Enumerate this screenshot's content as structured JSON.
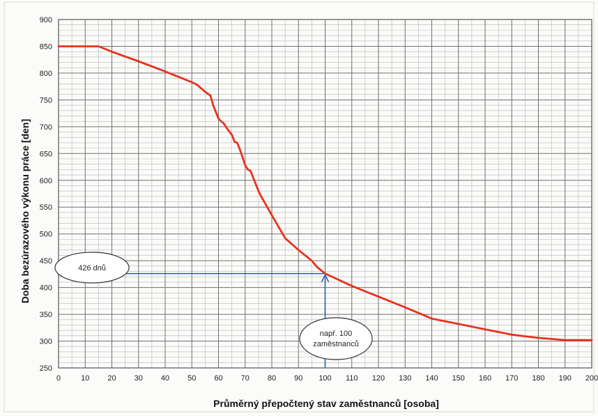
{
  "chart_data": {
    "type": "line",
    "title": "",
    "xlabel": "Průměrný přepočtený stav zaměstnanců [osoba]",
    "ylabel": "Doba bezúrazového výkonu práce [den]",
    "xlim": [
      0,
      200
    ],
    "ylim": [
      250,
      900
    ],
    "x_ticks": [
      0,
      10,
      20,
      30,
      40,
      50,
      60,
      70,
      80,
      90,
      100,
      110,
      120,
      130,
      140,
      150,
      160,
      170,
      180,
      190,
      200
    ],
    "y_ticks": [
      250,
      300,
      350,
      400,
      450,
      500,
      550,
      600,
      650,
      700,
      750,
      800,
      850,
      900
    ],
    "grid": true,
    "line_color": "#e8321e",
    "annotation_color": "#1f5fb4",
    "series": [
      {
        "name": "",
        "points": [
          [
            0,
            850
          ],
          [
            15,
            850
          ],
          [
            20,
            840
          ],
          [
            30,
            822
          ],
          [
            40,
            803
          ],
          [
            50,
            783
          ],
          [
            52,
            778
          ],
          [
            55,
            765
          ],
          [
            57,
            758
          ],
          [
            58,
            740
          ],
          [
            60,
            715
          ],
          [
            61,
            710
          ],
          [
            62,
            706
          ],
          [
            63,
            698
          ],
          [
            65,
            685
          ],
          [
            66,
            672
          ],
          [
            67,
            670
          ],
          [
            68,
            658
          ],
          [
            70,
            628
          ],
          [
            71,
            620
          ],
          [
            72,
            618
          ],
          [
            73,
            605
          ],
          [
            75,
            580
          ],
          [
            76,
            570
          ],
          [
            80,
            535
          ],
          [
            85,
            492
          ],
          [
            90,
            470
          ],
          [
            95,
            450
          ],
          [
            97,
            438
          ],
          [
            100,
            426
          ],
          [
            110,
            403
          ],
          [
            120,
            383
          ],
          [
            130,
            363
          ],
          [
            140,
            342
          ],
          [
            150,
            332
          ],
          [
            160,
            322
          ],
          [
            170,
            312
          ],
          [
            180,
            306
          ],
          [
            190,
            302
          ],
          [
            200,
            302
          ]
        ]
      }
    ],
    "annotations": [
      {
        "label": "426 dnů",
        "x": 100,
        "y": 426
      },
      {
        "label": "např.  100\nzaměstnanců",
        "x": 100,
        "y": 426
      }
    ]
  }
}
